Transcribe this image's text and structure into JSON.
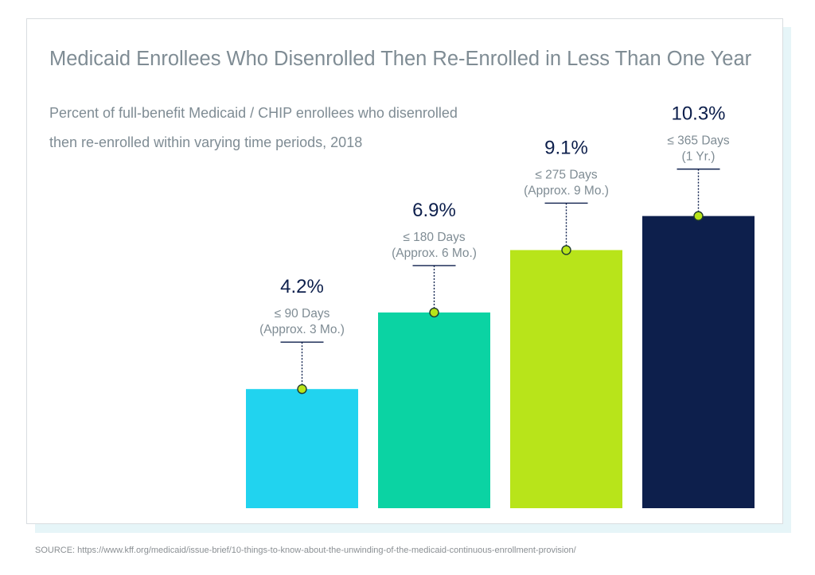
{
  "title": "Medicaid Enrollees Who Disenrolled Then Re-Enrolled in Less Than One Year",
  "subtitle_lines": [
    "Percent of full-benefit Medicaid / CHIP enrollees who disenrolled",
    "then re-enrolled within varying time periods, 2018"
  ],
  "source": "SOURCE:  https://www.kff.org/medicaid/issue-brief/10-things-to-know-about-the-unwinding-of-the-medicaid-continuous-enrollment-provision/",
  "colors": {
    "title_text": "#7f8c94",
    "value_text": "#0d1f4c",
    "label_text": "#7f8c94",
    "marker_fill": "#b8e41a",
    "marker_stroke": "#1f3a2f",
    "connector": "#0d1f4c"
  },
  "chart_data": {
    "type": "bar",
    "categories": [
      "≤ 90 Days (Approx. 3 Mo.)",
      "≤ 180 Days (Approx. 6 Mo.)",
      "≤ 275 Days (Approx. 9 Mo.)",
      "≤ 365 Days (1 Yr.)"
    ],
    "values": [
      4.2,
      6.9,
      9.1,
      10.3
    ],
    "value_labels": [
      "4.2%",
      "6.9%",
      "9.1%",
      "10.3%"
    ],
    "category_lines": [
      [
        "≤ 90 Days",
        "(Approx. 3 Mo.)"
      ],
      [
        "≤ 180 Days",
        "(Approx. 6 Mo.)"
      ],
      [
        "≤ 275 Days",
        "(Approx. 9 Mo.)"
      ],
      [
        "≤ 365 Days",
        "(1 Yr.)"
      ]
    ],
    "bar_colors": [
      "#21d3ef",
      "#0bd3a3",
      "#b8e41a",
      "#0d1f4c"
    ],
    "ylim": [
      0,
      12
    ],
    "xlabel": "",
    "ylabel": "",
    "grid": false,
    "legend": "none"
  }
}
